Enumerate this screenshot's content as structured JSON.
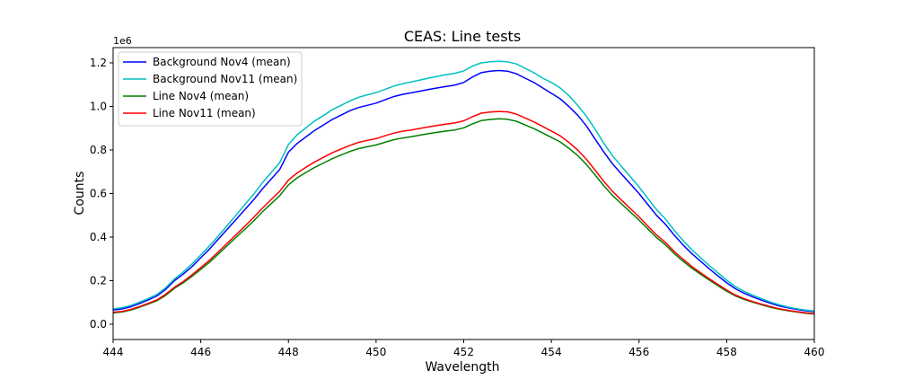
{
  "chart_data": {
    "type": "line",
    "title": "CEAS: Line tests",
    "xlabel": "Wavelength",
    "ylabel": "Counts",
    "y_offset_label": "1e6",
    "xlim": [
      444,
      460
    ],
    "ylim": [
      -70000,
      1270000
    ],
    "x_ticks": [
      444,
      446,
      448,
      450,
      452,
      454,
      456,
      458,
      460
    ],
    "x_tick_labels": [
      "444",
      "446",
      "448",
      "450",
      "452",
      "454",
      "456",
      "458",
      "460"
    ],
    "y_ticks": [
      0,
      200000,
      400000,
      600000,
      800000,
      1000000,
      1200000
    ],
    "y_tick_labels": [
      "0.0",
      "0.2",
      "0.4",
      "0.6",
      "0.8",
      "1.0",
      "1.2"
    ],
    "grid": false,
    "legend_position": "upper-left",
    "x": [
      444.0,
      444.2,
      444.4,
      444.6,
      444.8,
      445.0,
      445.2,
      445.4,
      445.6,
      445.8,
      446.0,
      446.2,
      446.4,
      446.6,
      446.8,
      447.0,
      447.2,
      447.4,
      447.6,
      447.8,
      448.0,
      448.2,
      448.4,
      448.6,
      448.8,
      449.0,
      449.2,
      449.4,
      449.6,
      449.8,
      450.0,
      450.2,
      450.4,
      450.6,
      450.8,
      451.0,
      451.2,
      451.4,
      451.6,
      451.8,
      452.0,
      452.2,
      452.4,
      452.6,
      452.8,
      453.0,
      453.2,
      453.4,
      453.6,
      453.8,
      454.0,
      454.2,
      454.4,
      454.6,
      454.8,
      455.0,
      455.2,
      455.4,
      455.6,
      455.8,
      456.0,
      456.2,
      456.4,
      456.6,
      456.8,
      457.0,
      457.2,
      457.4,
      457.6,
      457.8,
      458.0,
      458.2,
      458.4,
      458.6,
      458.8,
      459.0,
      459.2,
      459.4,
      459.6,
      459.8,
      460.0
    ],
    "series": [
      {
        "name": "Background Nov4 (mean)",
        "color": "#0000ff",
        "values": [
          65000,
          70000,
          80000,
          95000,
          112000,
          130000,
          160000,
          200000,
          230000,
          265000,
          305000,
          345000,
          390000,
          435000,
          480000,
          525000,
          570000,
          620000,
          665000,
          710000,
          790000,
          830000,
          860000,
          890000,
          915000,
          940000,
          960000,
          980000,
          995000,
          1005000,
          1015000,
          1030000,
          1045000,
          1055000,
          1062000,
          1070000,
          1078000,
          1085000,
          1092000,
          1098000,
          1110000,
          1135000,
          1155000,
          1162000,
          1165000,
          1162000,
          1150000,
          1130000,
          1110000,
          1085000,
          1060000,
          1035000,
          1000000,
          960000,
          910000,
          850000,
          790000,
          735000,
          690000,
          645000,
          600000,
          550000,
          500000,
          460000,
          410000,
          365000,
          325000,
          290000,
          255000,
          222000,
          190000,
          163000,
          142000,
          125000,
          110000,
          96000,
          84000,
          75000,
          68000,
          62000,
          58000
        ]
      },
      {
        "name": "Background Nov11 (mean)",
        "color": "#00bfbf",
        "values": [
          70000,
          76000,
          86000,
          101000,
          118000,
          137000,
          168000,
          208000,
          240000,
          277000,
          318000,
          360000,
          405000,
          452000,
          500000,
          548000,
          595000,
          648000,
          695000,
          742000,
          825000,
          870000,
          902000,
          933000,
          958000,
          985000,
          1005000,
          1025000,
          1042000,
          1053000,
          1063000,
          1078000,
          1093000,
          1104000,
          1112000,
          1121000,
          1130000,
          1138000,
          1146000,
          1152000,
          1163000,
          1185000,
          1200000,
          1205000,
          1207000,
          1205000,
          1195000,
          1175000,
          1155000,
          1130000,
          1110000,
          1085000,
          1050000,
          1005000,
          955000,
          895000,
          830000,
          772000,
          725000,
          678000,
          630000,
          578000,
          526000,
          484000,
          432000,
          385000,
          343000,
          306000,
          270000,
          236000,
          202000,
          173000,
          151000,
          133000,
          117000,
          102000,
          89000,
          79000,
          71000,
          65000,
          61000
        ]
      },
      {
        "name": "Line Nov4 (mean)",
        "color": "#008000",
        "values": [
          52000,
          56000,
          65000,
          78000,
          93000,
          108000,
          133000,
          165000,
          190000,
          220000,
          252000,
          285000,
          322000,
          360000,
          398000,
          435000,
          473000,
          515000,
          552000,
          590000,
          640000,
          672000,
          697000,
          720000,
          740000,
          760000,
          777000,
          793000,
          806000,
          815000,
          823000,
          835000,
          847000,
          855000,
          861000,
          868000,
          875000,
          881000,
          887000,
          892000,
          902000,
          920000,
          935000,
          940000,
          943000,
          941000,
          932000,
          915000,
          898000,
          878000,
          858000,
          837000,
          808000,
          775000,
          733000,
          685000,
          635000,
          590000,
          553000,
          515000,
          478000,
          438000,
          398000,
          365000,
          325000,
          290000,
          258000,
          230000,
          203000,
          177000,
          152000,
          130000,
          114000,
          101000,
          89000,
          78000,
          69000,
          62000,
          56000,
          51000,
          47000
        ]
      },
      {
        "name": "Line Nov11 (mean)",
        "color": "#ff0000",
        "values": [
          55000,
          59000,
          68000,
          81000,
          96000,
          112000,
          138000,
          170000,
          196000,
          227000,
          260000,
          294000,
          332000,
          371000,
          410000,
          449000,
          489000,
          532000,
          571000,
          610000,
          662000,
          695000,
          721000,
          745000,
          766000,
          787000,
          804000,
          821000,
          835000,
          844000,
          852000,
          865000,
          877000,
          886000,
          892000,
          899000,
          906000,
          913000,
          919000,
          924000,
          934000,
          953000,
          969000,
          974000,
          977000,
          975000,
          965000,
          947000,
          929000,
          908000,
          887000,
          865000,
          835000,
          800000,
          757000,
          707000,
          655000,
          609000,
          570000,
          531000,
          493000,
          451000,
          410000,
          376000,
          335000,
          299000,
          266000,
          237000,
          209000,
          183000,
          157000,
          134000,
          117000,
          104000,
          92000,
          81000,
          71000,
          64000,
          58000,
          53000,
          49000
        ]
      }
    ]
  }
}
